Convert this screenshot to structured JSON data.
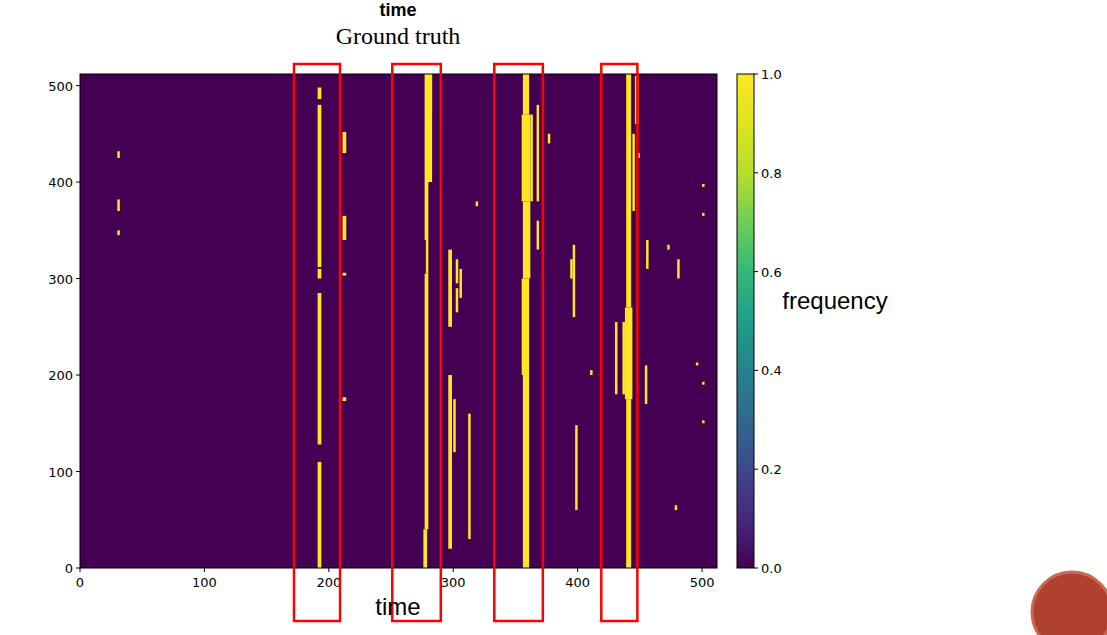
{
  "chart_data": {
    "type": "heatmap",
    "top_label": "time",
    "title": "Ground truth",
    "x_label": "time",
    "y_label": "frequency",
    "xlim": [
      0,
      512
    ],
    "ylim": [
      0,
      512
    ],
    "xticks": [
      0,
      100,
      200,
      300,
      400,
      500
    ],
    "yticks": [
      0,
      100,
      200,
      300,
      400,
      500
    ],
    "segment_value": 1,
    "segments": [
      [
        30,
        31,
        425,
        432
      ],
      [
        30,
        31,
        370,
        382
      ],
      [
        30,
        31,
        345,
        350
      ],
      [
        191,
        193,
        0,
        110
      ],
      [
        191,
        193,
        128,
        285
      ],
      [
        191,
        193,
        300,
        310
      ],
      [
        191,
        193,
        312,
        480
      ],
      [
        191,
        193,
        486,
        498
      ],
      [
        211,
        213,
        430,
        452
      ],
      [
        211,
        213,
        340,
        365
      ],
      [
        211,
        213,
        303,
        306
      ],
      [
        211,
        213,
        173,
        177
      ],
      [
        276,
        278,
        0,
        40
      ],
      [
        277,
        279,
        40,
        305
      ],
      [
        278,
        279,
        305,
        340
      ],
      [
        277,
        279,
        340,
        512
      ],
      [
        279,
        282,
        400,
        512
      ],
      [
        280,
        282,
        470,
        512
      ],
      [
        296,
        298,
        20,
        200
      ],
      [
        296,
        298,
        250,
        330
      ],
      [
        302,
        303,
        265,
        290
      ],
      [
        302,
        303,
        295,
        320
      ],
      [
        300,
        301,
        120,
        175
      ],
      [
        312,
        313,
        30,
        160
      ],
      [
        318,
        319,
        375,
        380
      ],
      [
        305,
        306,
        280,
        310
      ],
      [
        356,
        360,
        0,
        200
      ],
      [
        355,
        360,
        200,
        300
      ],
      [
        356,
        361,
        300,
        380
      ],
      [
        355,
        361,
        380,
        470
      ],
      [
        356,
        360,
        470,
        512
      ],
      [
        362,
        363,
        380,
        470
      ],
      [
        367,
        368,
        330,
        360
      ],
      [
        367,
        368,
        380,
        480
      ],
      [
        376,
        377,
        440,
        450
      ],
      [
        394,
        395,
        300,
        320
      ],
      [
        396,
        397,
        260,
        335
      ],
      [
        398,
        399,
        60,
        148
      ],
      [
        410,
        411,
        200,
        205
      ],
      [
        439,
        442,
        0,
        175
      ],
      [
        438,
        443,
        175,
        270
      ],
      [
        439,
        442,
        270,
        512
      ],
      [
        436,
        437,
        180,
        255
      ],
      [
        430,
        431,
        180,
        255
      ],
      [
        444,
        445,
        370,
        450
      ],
      [
        446,
        448,
        460,
        510
      ],
      [
        448,
        449,
        425,
        430
      ],
      [
        454,
        455,
        170,
        210
      ],
      [
        455,
        456,
        310,
        340
      ],
      [
        472,
        473,
        330,
        335
      ],
      [
        478,
        479,
        60,
        65
      ],
      [
        480,
        481,
        300,
        320
      ],
      [
        495,
        496,
        210,
        213
      ],
      [
        500,
        501,
        190,
        193
      ],
      [
        500,
        501,
        150,
        153
      ],
      [
        500,
        501,
        395,
        398
      ],
      [
        500,
        501,
        365,
        368
      ]
    ],
    "highlights": [
      [
        172,
        209
      ],
      [
        251,
        290
      ],
      [
        333,
        372
      ],
      [
        419,
        448
      ]
    ],
    "colorbar": {
      "range": [
        0,
        1
      ],
      "ticks": [
        {
          "value": 0,
          "label": "0.0"
        },
        {
          "value": 0.2,
          "label": "0.2"
        },
        {
          "value": 0.4,
          "label": "0.4"
        },
        {
          "value": 0.6,
          "label": "0.6"
        },
        {
          "value": 0.8,
          "label": "0.8"
        },
        {
          "value": 1,
          "label": "1.0"
        }
      ]
    }
  }
}
